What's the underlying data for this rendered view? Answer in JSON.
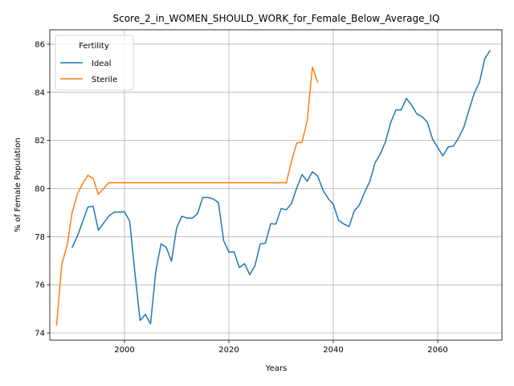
{
  "chart_data": {
    "type": "line",
    "title": "Score_2_in_WOMEN_SHOULD_WORK_for_Female_Below_Average_IQ",
    "xlabel": "Years",
    "ylabel": "% of Female Population",
    "xlim": [
      1985.7,
      2072.3
    ],
    "ylim": [
      73.7,
      86.6
    ],
    "xticks": [
      2000,
      2020,
      2040,
      2060
    ],
    "yticks": [
      74,
      76,
      78,
      80,
      82,
      84,
      86
    ],
    "grid": true,
    "legend": {
      "title": "Fertility",
      "position": "top-left"
    },
    "series": [
      {
        "name": "Ideal",
        "color": "#1f77b4",
        "x": [
          1990,
          1991,
          1992,
          1993,
          1994,
          1995,
          1996,
          1997,
          1998,
          1999,
          2000,
          2001,
          2002,
          2003,
          2004,
          2005,
          2006,
          2007,
          2008,
          2009,
          2010,
          2011,
          2012,
          2013,
          2014,
          2015,
          2016,
          2017,
          2018,
          2019,
          2020,
          2021,
          2022,
          2023,
          2024,
          2025,
          2026,
          2027,
          2028,
          2029,
          2030,
          2031,
          2032,
          2033,
          2034,
          2035,
          2036,
          2037,
          2038,
          2039,
          2040,
          2041,
          2042,
          2043,
          2044,
          2045,
          2046,
          2047,
          2048,
          2049,
          2050,
          2051,
          2052,
          2053,
          2054,
          2055,
          2056,
          2057,
          2058,
          2059,
          2060,
          2061,
          2062,
          2063,
          2064,
          2065,
          2066,
          2067,
          2068,
          2069,
          2070
        ],
        "y": [
          77.56,
          78.03,
          78.63,
          79.23,
          79.27,
          78.27,
          78.56,
          78.86,
          79.02,
          79.02,
          79.04,
          78.65,
          76.5,
          74.52,
          74.77,
          74.38,
          76.56,
          77.7,
          77.56,
          76.98,
          78.37,
          78.85,
          78.77,
          78.77,
          78.96,
          79.63,
          79.63,
          79.57,
          79.42,
          77.83,
          77.36,
          77.37,
          76.72,
          76.88,
          76.42,
          76.8,
          77.7,
          77.73,
          78.54,
          78.52,
          79.17,
          79.12,
          79.38,
          80.03,
          80.58,
          80.31,
          80.7,
          80.52,
          79.95,
          79.59,
          79.35,
          78.68,
          78.53,
          78.42,
          79.06,
          79.32,
          79.85,
          80.3,
          81.07,
          81.44,
          81.95,
          82.75,
          83.27,
          83.27,
          83.75,
          83.47,
          83.1,
          82.99,
          82.76,
          82.06,
          81.7,
          81.36,
          81.73,
          81.76,
          82.11,
          82.55,
          83.27,
          83.97,
          84.42,
          85.39,
          85.73
        ]
      },
      {
        "name": "Sterile",
        "color": "#ff7f0e",
        "x": [
          1987,
          1988,
          1989,
          1990,
          1991,
          1992,
          1993,
          1994,
          1995,
          1996,
          1997,
          1998,
          1999,
          2000,
          2005,
          2010,
          2015,
          2020,
          2025,
          2030,
          2031,
          2032,
          2033,
          2034,
          2035,
          2036,
          2037
        ],
        "y": [
          74.33,
          76.85,
          77.62,
          79.02,
          79.78,
          80.21,
          80.55,
          80.42,
          79.76,
          80.0,
          80.24,
          80.24,
          80.24,
          80.24,
          80.24,
          80.24,
          80.24,
          80.24,
          80.24,
          80.24,
          80.24,
          81.14,
          81.9,
          81.92,
          82.82,
          85.05,
          84.43
        ]
      }
    ]
  }
}
